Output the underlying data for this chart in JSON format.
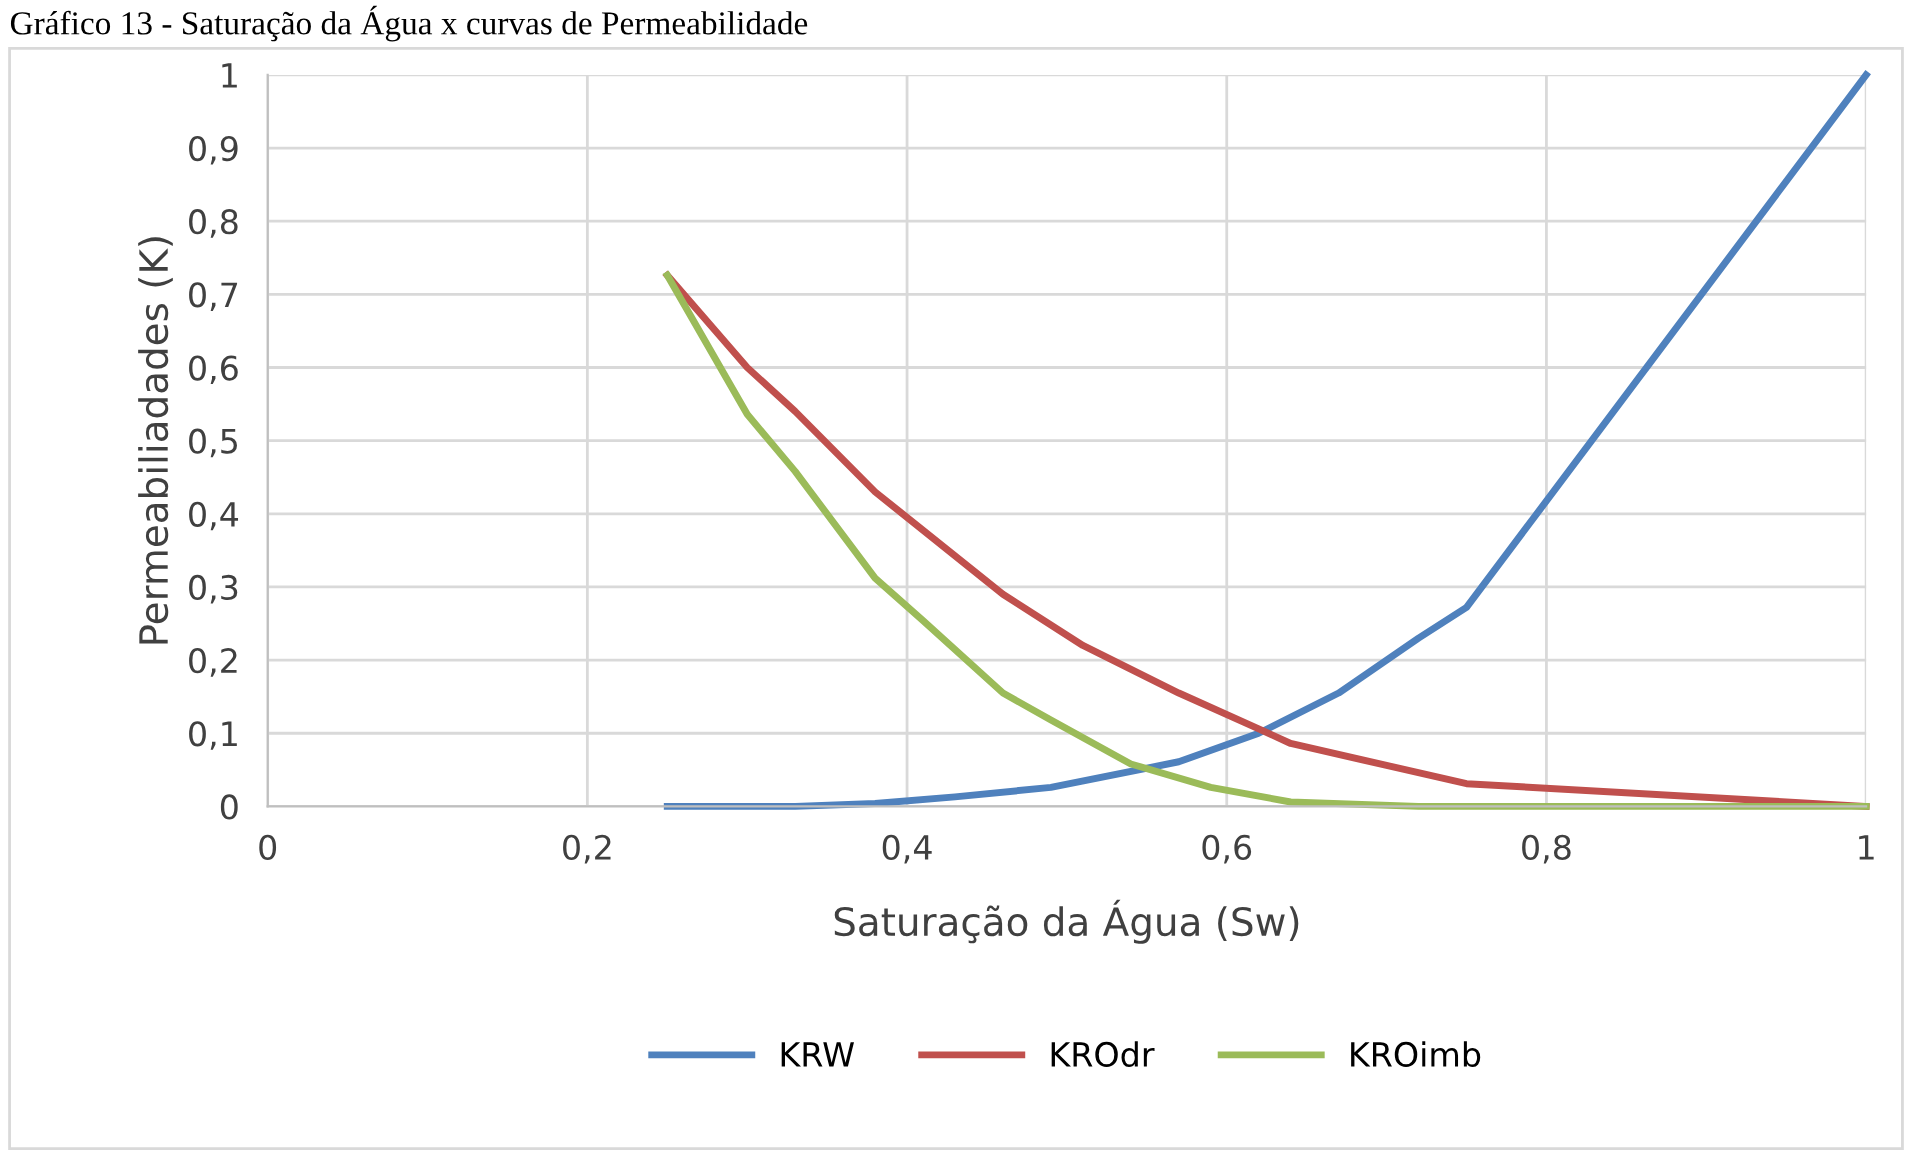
{
  "chart_data": {
    "type": "line",
    "title": "Gráfico 13 - Saturação da Água x curvas de Permeabilidade",
    "xlabel": "Saturação da Água (Sw)",
    "ylabel": "Permeabiliadades (K)",
    "series": [
      {
        "name": "KRW",
        "color": "#4f81bd",
        "x": [
          0.25,
          0.33,
          0.38,
          0.43,
          0.49,
          0.57,
          0.62,
          0.67,
          0.72,
          0.75,
          1
        ],
        "values": [
          0,
          0,
          0.004,
          0.013,
          0.026,
          0.061,
          0.1,
          0.155,
          0.23,
          0.272,
          1
        ]
      },
      {
        "name": "KROdr",
        "color": "#c0504d",
        "x": [
          0.25,
          0.3,
          0.33,
          0.38,
          0.46,
          0.51,
          0.57,
          0.62,
          0.64,
          0.7,
          0.75,
          1
        ],
        "values": [
          0.726,
          0.6,
          0.54,
          0.43,
          0.29,
          0.22,
          0.155,
          0.106,
          0.086,
          0.056,
          0.031,
          0
        ]
      },
      {
        "name": "KROimb",
        "color": "#9bbb59",
        "x": [
          0.25,
          0.3,
          0.33,
          0.38,
          0.41,
          0.46,
          0.49,
          0.54,
          0.59,
          0.64,
          0.72,
          1
        ],
        "values": [
          0.726,
          0.536,
          0.458,
          0.312,
          0.254,
          0.155,
          0.118,
          0.058,
          0.026,
          0.006,
          0,
          0
        ]
      }
    ],
    "xlim": [
      0,
      1
    ],
    "ylim": [
      0,
      1
    ],
    "xticks": [
      0,
      {
        "value": 0.2,
        "label": "0,2"
      },
      {
        "value": 0.4,
        "label": "0,4"
      },
      {
        "value": 0.6,
        "label": "0,6"
      },
      {
        "value": 0.8,
        "label": "0,8"
      },
      1
    ],
    "yticks": [
      0,
      {
        "value": 0.1,
        "label": "0,1"
      },
      {
        "value": 0.2,
        "label": "0,2"
      },
      {
        "value": 0.3,
        "label": "0,3"
      },
      {
        "value": 0.4,
        "label": "0,4"
      },
      {
        "value": 0.5,
        "label": "0,5"
      },
      {
        "value": 0.6,
        "label": "0,6"
      },
      {
        "value": 0.7,
        "label": "0,7"
      },
      {
        "value": 0.8,
        "label": "0,8"
      },
      {
        "value": 0.9,
        "label": "0,9"
      },
      1
    ],
    "grid": true,
    "legend": "bottom",
    "marker": "none",
    "line_style": "solid"
  }
}
